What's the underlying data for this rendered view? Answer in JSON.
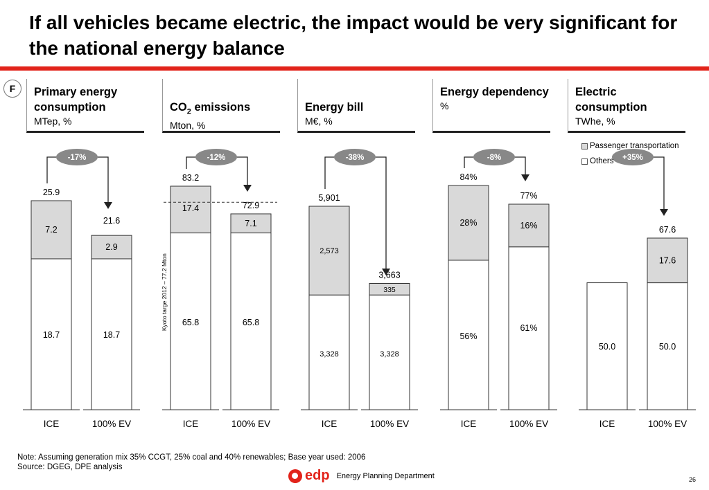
{
  "title": "If all vehicles became electric, the impact would be very significant for the national energy balance",
  "badge": "F",
  "colors": {
    "red": "#e2231a",
    "grey_fill": "#d9d9d9",
    "arrow": "#222222",
    "pill": "#888888"
  },
  "legend": {
    "passenger": "Passenger transportation",
    "others": "Others"
  },
  "note": "Note: Assuming generation mix 35% CCGT, 25% coal and 40% renewables; Base year used: 2006",
  "source": "Source: DGEG, DPE analysis",
  "footer": {
    "logo": "edp",
    "dept": "Energy Planning Department",
    "page": "26"
  },
  "chart_data": [
    {
      "type": "bar",
      "title": "Primary energy consumption",
      "unit": "MTep, %",
      "categories": [
        "ICE",
        "100% EV"
      ],
      "series": [
        {
          "name": "Others",
          "values": [
            18.7,
            18.7
          ],
          "labels": [
            "18.7",
            "18.7"
          ]
        },
        {
          "name": "Passenger transportation",
          "values": [
            7.2,
            2.9
          ],
          "labels": [
            "7.2",
            "2.9"
          ]
        }
      ],
      "totals": [
        "25.9",
        "21.6"
      ],
      "change": "-17%"
    },
    {
      "type": "bar",
      "title": "CO2 emissions",
      "unit": "Mton, %",
      "categories": [
        "ICE",
        "100% EV"
      ],
      "series": [
        {
          "name": "Others",
          "values": [
            65.8,
            65.8
          ],
          "labels": [
            "65.8",
            "65.8"
          ]
        },
        {
          "name": "Passenger transportation",
          "values": [
            17.4,
            7.1
          ],
          "labels": [
            "17.4",
            "7.1"
          ]
        }
      ],
      "totals": [
        "83.2",
        "72.9"
      ],
      "change": "-12%",
      "reference_line": {
        "value": 77.2,
        "label": "Kyoto targe 2012 – 77.2 Mton"
      }
    },
    {
      "type": "bar",
      "title": "Energy bill",
      "unit": "M€, %",
      "categories": [
        "ICE",
        "100% EV"
      ],
      "series": [
        {
          "name": "Others",
          "values": [
            3328,
            3328
          ],
          "labels": [
            "3,328",
            "3,328"
          ]
        },
        {
          "name": "Passenger transportation",
          "values": [
            2573,
            335
          ],
          "labels": [
            "2,573",
            "335"
          ]
        }
      ],
      "totals": [
        "5,901",
        "3,663"
      ],
      "change": "-38%"
    },
    {
      "type": "bar",
      "title": "Energy dependency",
      "unit": "%",
      "categories": [
        "ICE",
        "100% EV"
      ],
      "series": [
        {
          "name": "Others",
          "values": [
            56,
            61
          ],
          "labels": [
            "56%",
            "61%"
          ]
        },
        {
          "name": "Passenger transportation",
          "values": [
            28,
            16
          ],
          "labels": [
            "28%",
            "16%"
          ]
        }
      ],
      "totals": [
        "84%",
        "77%"
      ],
      "change": "-8%"
    },
    {
      "type": "bar",
      "title": "Electric consumption",
      "unit": "TWhe, %",
      "categories": [
        "ICE",
        "100% EV"
      ],
      "series": [
        {
          "name": "Others",
          "values": [
            50.0,
            50.0
          ],
          "labels": [
            "50.0",
            "50.0"
          ]
        },
        {
          "name": "Passenger transportation",
          "values": [
            0,
            17.6
          ],
          "labels": [
            "",
            "17.6"
          ]
        }
      ],
      "totals": [
        "",
        "67.6"
      ],
      "change": "+35%"
    }
  ]
}
